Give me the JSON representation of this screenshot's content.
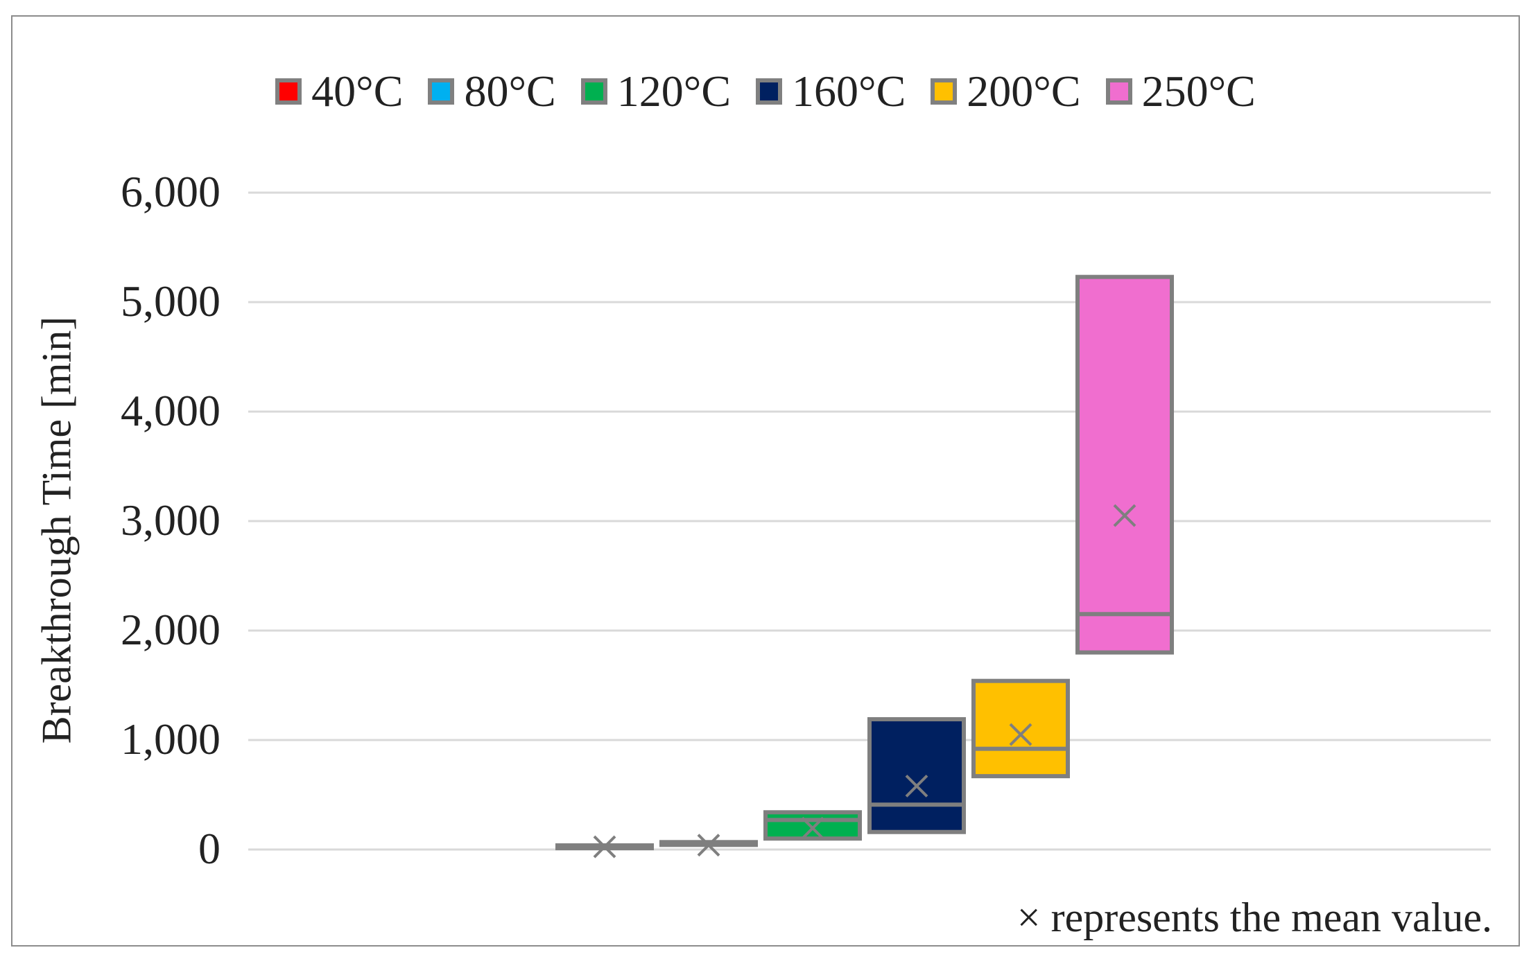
{
  "chart_data": {
    "type": "box",
    "ylabel": "Breakthrough Time [min]",
    "ylim": [
      0,
      6000
    ],
    "yticks": [
      "0",
      "1,000",
      "2,000",
      "3,000",
      "4,000",
      "5,000",
      "6,000"
    ],
    "ytick_values": [
      0,
      1000,
      2000,
      3000,
      4000,
      5000,
      6000
    ],
    "grid": true,
    "legend_position": "top",
    "note": "× represents the mean value.",
    "series": [
      {
        "name": "40°C",
        "color": "#ff0000",
        "q1": 25,
        "median": 25,
        "q3": 25,
        "mean": 25
      },
      {
        "name": "80°C",
        "color": "#00b0f0",
        "q1": 35,
        "median": 45,
        "q3": 55,
        "mean": 40
      },
      {
        "name": "120°C",
        "color": "#00b050",
        "q1": 100,
        "median": 270,
        "q3": 340,
        "mean": 195
      },
      {
        "name": "160°C",
        "color": "#002060",
        "q1": 160,
        "median": 410,
        "q3": 1190,
        "mean": 580
      },
      {
        "name": "200°C",
        "color": "#ffc000",
        "q1": 670,
        "median": 920,
        "q3": 1540,
        "mean": 1050
      },
      {
        "name": "250°C",
        "color": "#f06ecf",
        "q1": 1800,
        "median": 2150,
        "q3": 5230,
        "mean": 3050
      }
    ]
  }
}
